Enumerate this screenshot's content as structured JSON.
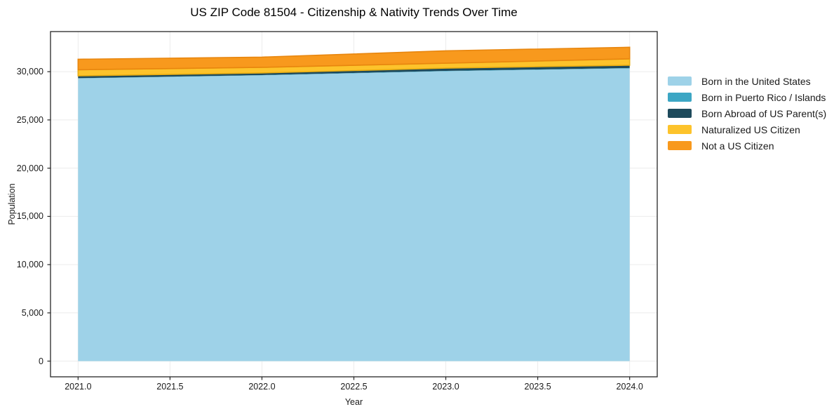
{
  "chart_data": {
    "type": "area",
    "stacked": true,
    "title": "US ZIP Code 81504 - Citizenship & Nativity Trends Over Time",
    "xlabel": "Year",
    "ylabel": "Population",
    "x": [
      2021,
      2022,
      2023,
      2024
    ],
    "series": [
      {
        "name": "Born in the United States",
        "color": "#9ED2E8",
        "values": [
          29300,
          29620,
          30050,
          30340
        ]
      },
      {
        "name": "Born in Puerto Rico / Islands",
        "color": "#3CA6C4",
        "values": [
          30,
          30,
          30,
          40
        ]
      },
      {
        "name": "Born Abroad of US Parent(s)",
        "color": "#1E4A5C",
        "values": [
          240,
          220,
          290,
          290
        ]
      },
      {
        "name": "Naturalized US Citizen",
        "color": "#FDC32B",
        "edge": "#EAAD10",
        "values": [
          630,
          580,
          510,
          660
        ]
      },
      {
        "name": "Not a US Citizen",
        "color": "#F8991D",
        "edge": "#E8860E",
        "values": [
          1090,
          1060,
          1280,
          1200
        ]
      }
    ],
    "totals": [
      31290,
      31510,
      32160,
      32530
    ],
    "xlim": [
      2020.85,
      2024.15
    ],
    "ylim": [
      -1627,
      34157
    ],
    "xticks": [
      2021,
      2021.5,
      2022,
      2022.5,
      2023,
      2023.5,
      2024
    ],
    "xtick_labels": [
      "2021.0",
      "2021.5",
      "2022.0",
      "2022.5",
      "2023.0",
      "2023.5",
      "2024.0"
    ],
    "yticks": [
      0,
      5000,
      10000,
      15000,
      20000,
      25000,
      30000
    ],
    "ytick_labels": [
      "0",
      "5,000",
      "10,000",
      "15,000",
      "20,000",
      "25,000",
      "30,000"
    ],
    "grid": true,
    "legend_position": "right-outside"
  },
  "colors": {
    "grid": "#ebebeb",
    "spine": "#262626",
    "tick": "#262626",
    "background": "#ffffff"
  }
}
